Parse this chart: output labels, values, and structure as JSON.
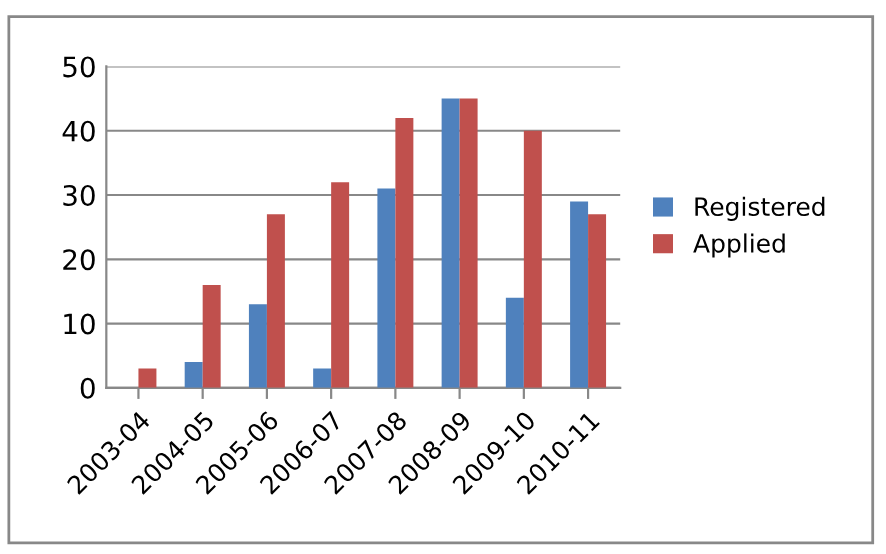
{
  "chart_data": {
    "type": "bar",
    "categories": [
      "2003-04",
      "2004-05",
      "2005-06",
      "2006-07",
      "2007-08",
      "2008-09",
      "2009-10",
      "2010-11"
    ],
    "series": [
      {
        "name": "Registered",
        "color": "#4f81bd",
        "values": [
          0,
          4,
          13,
          3,
          31,
          45,
          14,
          29
        ]
      },
      {
        "name": "Applied",
        "color": "#c0504d",
        "values": [
          3,
          16,
          27,
          32,
          42,
          45,
          40,
          27
        ]
      }
    ],
    "ylim": [
      0,
      50
    ],
    "yticks": [
      0,
      10,
      20,
      30,
      40,
      50
    ],
    "grid": "y",
    "legend": "right"
  }
}
